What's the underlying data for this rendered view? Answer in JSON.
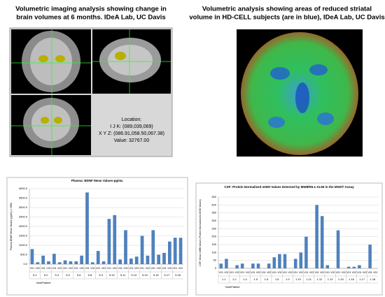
{
  "left_panel": {
    "title_lines": [
      "Volumetric imaging analysis showing  change in",
      "brain volumes at 6 months. IDeA Lab, UC Davis"
    ],
    "info": [
      "Location:",
      "I J K: (089,039,069)",
      "X Y Z: (086.91,058.50,067.38)",
      "Value: 32767.00"
    ]
  },
  "right_panel": {
    "title_lines": [
      "Volumetric analysis showing areas of reduced striatal",
      "volume in HD-CELL subjects (are in blue), IDeA Lab, UC Davis"
    ]
  },
  "chart_data": [
    {
      "type": "bar",
      "title": "Plasma: BDNF Mean Values-pg/mL",
      "y_label": "Plasma BDNF Mean Values (pg/mL) ± SEM",
      "x_label": "Visit/Patient",
      "color": "#4f81bd",
      "categories": [
        "V01",
        "V02",
        "V01",
        "V02",
        "V01",
        "V02",
        "V01",
        "V02",
        "V01",
        "V02",
        "V01",
        "V02",
        "V01",
        "V02",
        "V01",
        "V02",
        "V01",
        "V02",
        "V01",
        "V02",
        "V01",
        "V02",
        "V01",
        "V02",
        "V01",
        "V02",
        "V01",
        "V02"
      ],
      "groups": [
        "5.1",
        "5.2",
        "5.4",
        "5.5",
        "5.6",
        "5.8",
        "5.9",
        "5.10",
        "5.11",
        "5.13",
        "5.15",
        "5.16",
        "5.17",
        "5.18"
      ],
      "values": [
        800,
        100,
        450,
        150,
        550,
        100,
        200,
        150,
        150,
        450,
        3800,
        100,
        700,
        150,
        2400,
        2600,
        250,
        1800,
        300,
        400,
        1500,
        450,
        1800,
        500,
        600,
        1200,
        1400,
        1400
      ],
      "ylim": [
        0,
        4000
      ],
      "yticks": [
        {
          "value": 0,
          "label": "0.0"
        },
        {
          "value": 500,
          "label": "500.0"
        },
        {
          "value": 1000,
          "label": "1000.0"
        },
        {
          "value": 1500,
          "label": "1500.0"
        },
        {
          "value": 2000,
          "label": "2000.0"
        },
        {
          "value": 2500,
          "label": "2500.0"
        },
        {
          "value": 3000,
          "label": "3000.0"
        },
        {
          "value": 3500,
          "label": "3500.0"
        },
        {
          "value": 4000,
          "label": "4000.0"
        }
      ],
      "grid": true
    },
    {
      "type": "bar",
      "title": "CSF: Protein Normalized mtHtt Values Detected by MW8/R6.1-AL55 in the MSD® Assay",
      "y_label": "CSF: Mean mtHtt Values (Protein Normalized to MSD Values)",
      "x_label": "Visit/Patient",
      "color": "#4f81bd",
      "categories": [
        "V01",
        "V02",
        "V01",
        "V02",
        "V01",
        "V02",
        "V01",
        "V02",
        "V01",
        "V02",
        "V01",
        "V02",
        "V01",
        "V02",
        "V01",
        "V02",
        "V01",
        "V02",
        "V01",
        "V02",
        "V01",
        "V02",
        "V01",
        "V02",
        "V01",
        "V02",
        "V01",
        "V02",
        "V01",
        "V02"
      ],
      "groups": [
        "1.1",
        "1.2",
        "1.4",
        "1.5",
        "1.6",
        "1.8",
        "1.9",
        "1.10",
        "1.11",
        "1.12",
        "1.13",
        "1.15",
        "1.16",
        "1.17",
        "1.18"
      ],
      "values": [
        30,
        60,
        0,
        20,
        30,
        0,
        30,
        30,
        0,
        30,
        70,
        90,
        90,
        0,
        60,
        100,
        200,
        0,
        400,
        330,
        20,
        0,
        240,
        0,
        10,
        10,
        20,
        0,
        150,
        0
      ],
      "ylim": [
        0,
        450
      ],
      "yticks": [
        0,
        50,
        100,
        150,
        200,
        250,
        300,
        350,
        400,
        450
      ],
      "grid": true
    }
  ]
}
